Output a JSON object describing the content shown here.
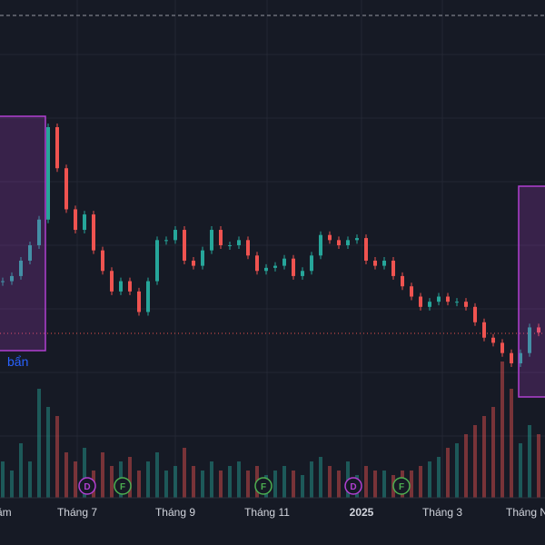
{
  "chart_data": {
    "type": "candlestick",
    "annotation": "bẩn",
    "x_labels": [
      "ăm",
      "Tháng 7",
      "Tháng 9",
      "Tháng 11",
      "2025",
      "Tháng 3",
      "Tháng N"
    ],
    "events": [
      "D",
      "F",
      "F",
      "D",
      "F"
    ],
    "up_color": "#26a69a",
    "down_color": "#ef5350",
    "box_color": "#b13fd1",
    "values": [
      90,
      95,
      110,
      125,
      150,
      240,
      200,
      160,
      140,
      155,
      120,
      100,
      80,
      90,
      80,
      60,
      90,
      130,
      130,
      140,
      110,
      105,
      120,
      140,
      125,
      125,
      130,
      115,
      100,
      103,
      105,
      112,
      95,
      100,
      115,
      135,
      130,
      125,
      130,
      132,
      110,
      105,
      110,
      95,
      85,
      75,
      65,
      70,
      75,
      70,
      70,
      65,
      50,
      35,
      30,
      20,
      10,
      20,
      45,
      40
    ],
    "volume": [
      40,
      30,
      60,
      40,
      120,
      100,
      90,
      50,
      40,
      55,
      30,
      50,
      35,
      40,
      45,
      30,
      40,
      50,
      30,
      35,
      55,
      35,
      30,
      40,
      30,
      35,
      40,
      30,
      35,
      25,
      30,
      35,
      30,
      25,
      40,
      45,
      35,
      30,
      40,
      25,
      35,
      30,
      30,
      25,
      30,
      30,
      35,
      40,
      45,
      55,
      60,
      70,
      80,
      90,
      100,
      150,
      120,
      60,
      80,
      70
    ]
  }
}
